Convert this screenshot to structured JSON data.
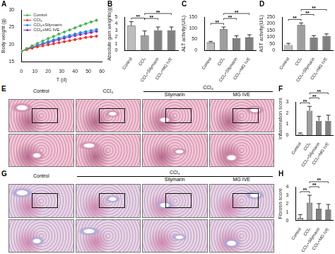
{
  "chart_data": [
    {
      "type": "line",
      "title": "A",
      "x_label": "T (d)",
      "y_label": "Body weight (g)",
      "x": [
        0,
        4,
        8,
        12,
        16,
        20,
        24,
        28,
        32,
        36,
        40,
        44,
        48,
        52,
        56
      ],
      "xlim": [
        0,
        60
      ],
      "xticks": [
        0,
        10,
        20,
        30,
        40,
        50,
        60
      ],
      "ylim": [
        15,
        30
      ],
      "yticks": [
        15,
        20,
        25,
        30
      ],
      "legend": "upper left",
      "marker": "circle",
      "series": [
        {
          "name": "Control",
          "color": "#4caf50",
          "values": [
            18.0,
            18.8,
            19.6,
            20.3,
            21.0,
            21.7,
            22.3,
            23.0,
            23.6,
            24.2,
            24.8,
            25.4,
            26.0,
            26.5,
            27.0
          ]
        },
        {
          "name": "CCl₄",
          "color": "#e53935",
          "values": [
            18.0,
            18.5,
            18.9,
            19.3,
            19.6,
            19.9,
            20.2,
            20.5,
            20.8,
            21.1,
            21.4,
            21.7,
            22.0,
            22.2,
            22.4
          ]
        },
        {
          "name": "CCl₄+Silymarin",
          "color": "#1e88e5",
          "values": [
            18.0,
            18.7,
            19.2,
            19.8,
            20.3,
            20.8,
            21.3,
            21.8,
            22.2,
            22.6,
            23.0,
            23.4,
            23.7,
            24.0,
            24.3
          ]
        },
        {
          "name": "CCl₄+MG IVE",
          "color": "#8e24aa",
          "values": [
            18.0,
            18.6,
            19.1,
            19.6,
            20.1,
            20.5,
            21.0,
            21.4,
            21.8,
            22.2,
            22.6,
            22.9,
            23.2,
            23.5,
            23.8
          ]
        }
      ]
    },
    {
      "type": "bar",
      "title": "B",
      "y_label": "Absolute gain weights(g)",
      "categories": [
        "Control",
        "CCl₄",
        "CCl₄+Silymarin",
        "CCl₄+MG IVE"
      ],
      "values": [
        3.7,
        2.2,
        3.0,
        3.0
      ],
      "errors": [
        0.6,
        0.7,
        0.5,
        0.5
      ],
      "colors": [
        "#bdbdbd",
        "#9e9e9e",
        "#808080",
        "#808080"
      ],
      "ylim": [
        0,
        5
      ],
      "yticks": [
        0,
        1,
        2,
        3,
        4,
        5
      ],
      "significance": [
        {
          "from": 0,
          "to": 1,
          "label": "**"
        },
        {
          "from": 1,
          "to": 2,
          "label": "**"
        },
        {
          "from": 1,
          "to": 3,
          "label": "**"
        }
      ]
    },
    {
      "type": "bar",
      "title": "C",
      "y_label": "ALT activity(U/L)",
      "categories": [
        "Control",
        "CCl₄",
        "CCl₄+Silymarin",
        "CCl₄+MG IVE"
      ],
      "values": [
        35,
        95,
        55,
        58
      ],
      "errors": [
        5,
        10,
        10,
        12
      ],
      "colors": [
        "#bdbdbd",
        "#9e9e9e",
        "#808080",
        "#808080"
      ],
      "ylim": [
        0,
        150
      ],
      "yticks": [
        0,
        50,
        100,
        150
      ],
      "significance": [
        {
          "from": 0,
          "to": 1,
          "label": "**"
        },
        {
          "from": 1,
          "to": 2,
          "label": "**"
        },
        {
          "from": 1,
          "to": 3,
          "label": "**"
        }
      ]
    },
    {
      "type": "bar",
      "title": "D",
      "y_label": "AST activity(U/L)",
      "categories": [
        "Control",
        "CCl₄",
        "CCl₄+Silymarin",
        "CCl₄+MG IVE"
      ],
      "values": [
        40,
        190,
        95,
        108
      ],
      "errors": [
        12,
        15,
        15,
        15
      ],
      "colors": [
        "#bdbdbd",
        "#9e9e9e",
        "#808080",
        "#808080"
      ],
      "ylim": [
        0,
        250
      ],
      "yticks": [
        0,
        50,
        100,
        150,
        200,
        250
      ],
      "significance": [
        {
          "from": 0,
          "to": 1,
          "label": "**"
        },
        {
          "from": 1,
          "to": 2,
          "label": "**"
        },
        {
          "from": 1,
          "to": 3,
          "label": "**"
        }
      ]
    },
    {
      "type": "bar",
      "title": "F",
      "y_label": "Inflammation score",
      "categories": [
        "Control",
        "CCl₄",
        "CCl₄+Silymarin",
        "CCl₄+MG IVE"
      ],
      "values": [
        0.1,
        2.2,
        1.3,
        1.3
      ],
      "errors": [
        0.1,
        0.4,
        0.4,
        0.5
      ],
      "colors": [
        "#bdbdbd",
        "#9e9e9e",
        "#808080",
        "#808080"
      ],
      "ylim": [
        0,
        3
      ],
      "yticks": [
        0,
        1,
        2,
        3
      ],
      "significance": [
        {
          "from": 0,
          "to": 1,
          "label": "**"
        },
        {
          "from": 1,
          "to": 2,
          "label": "**"
        },
        {
          "from": 1,
          "to": 3,
          "label": "**"
        }
      ]
    },
    {
      "type": "bar",
      "title": "H",
      "y_label": "Fibrosis score",
      "categories": [
        "Control",
        "CCl₄",
        "CCl₄+Silymarin",
        "CCl₄+MG IVE"
      ],
      "values": [
        0.3,
        2.1,
        1.4,
        1.3
      ],
      "errors": [
        0.4,
        0.9,
        0.6,
        0.6
      ],
      "colors": [
        "#bdbdbd",
        "#9e9e9e",
        "#808080",
        "#808080"
      ],
      "ylim": [
        0,
        4
      ],
      "yticks": [
        0,
        1,
        2,
        3,
        4
      ],
      "significance": [
        {
          "from": 0,
          "to": 1,
          "label": "**"
        },
        {
          "from": 1,
          "to": 2,
          "label": "**"
        },
        {
          "from": 1,
          "to": 3,
          "label": "**"
        }
      ]
    }
  ],
  "image_panels": [
    {
      "title": "E",
      "columns": [
        "Control",
        "CCl₄",
        "Silymarin",
        "MG IVE"
      ],
      "group": {
        "label": "CCl₄",
        "columns": [
          2,
          3
        ]
      }
    },
    {
      "title": "G",
      "columns": [
        "Control",
        null,
        "Silymarin",
        "MG IVE"
      ],
      "group": {
        "label": "CCl₄",
        "columns": [
          1,
          3
        ]
      }
    }
  ]
}
